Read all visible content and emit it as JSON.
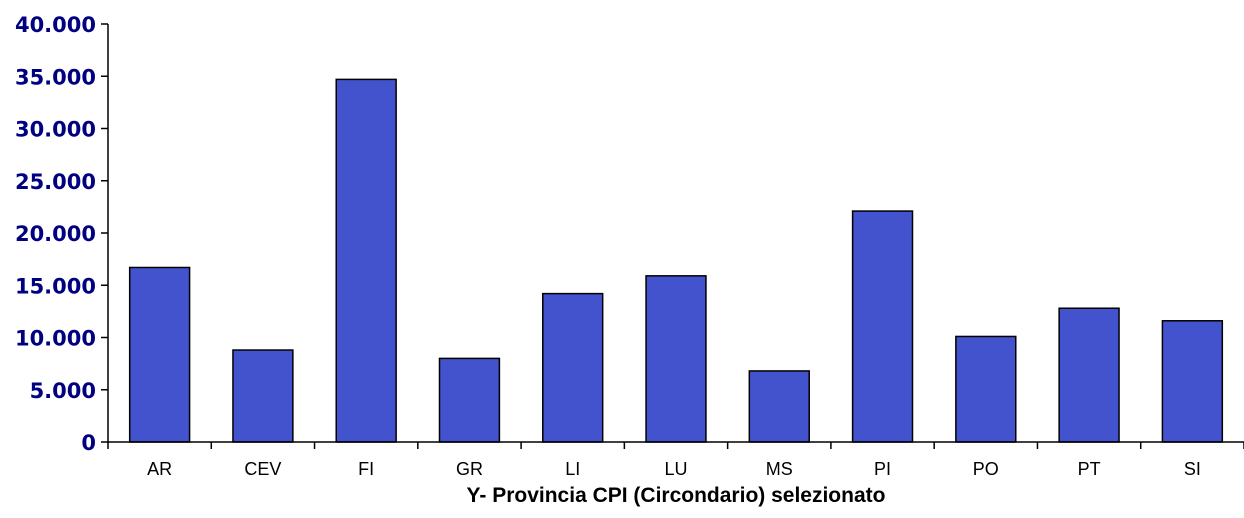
{
  "chart_data": {
    "type": "bar",
    "title": "",
    "xlabel": "Y- Provincia CPI (Circondario) selezionato",
    "ylabel": "",
    "categories": [
      "AR",
      "CEV",
      "FI",
      "GR",
      "LI",
      "LU",
      "MS",
      "PI",
      "PO",
      "PT",
      "SI"
    ],
    "values": [
      16700,
      8800,
      34700,
      8000,
      14200,
      15900,
      6800,
      22100,
      10100,
      12800,
      11600
    ],
    "ylim": [
      0,
      40000
    ],
    "yticks": [
      "0",
      "5.000",
      "10.000",
      "15.000",
      "20.000",
      "25.000",
      "30.000",
      "35.000",
      "40.000"
    ],
    "ytick_values": [
      0,
      5000,
      10000,
      15000,
      20000,
      25000,
      30000,
      35000,
      40000
    ],
    "grid": false,
    "legend": "none",
    "colors": {
      "bar": "#4353CD",
      "ytick": "#000080"
    }
  }
}
